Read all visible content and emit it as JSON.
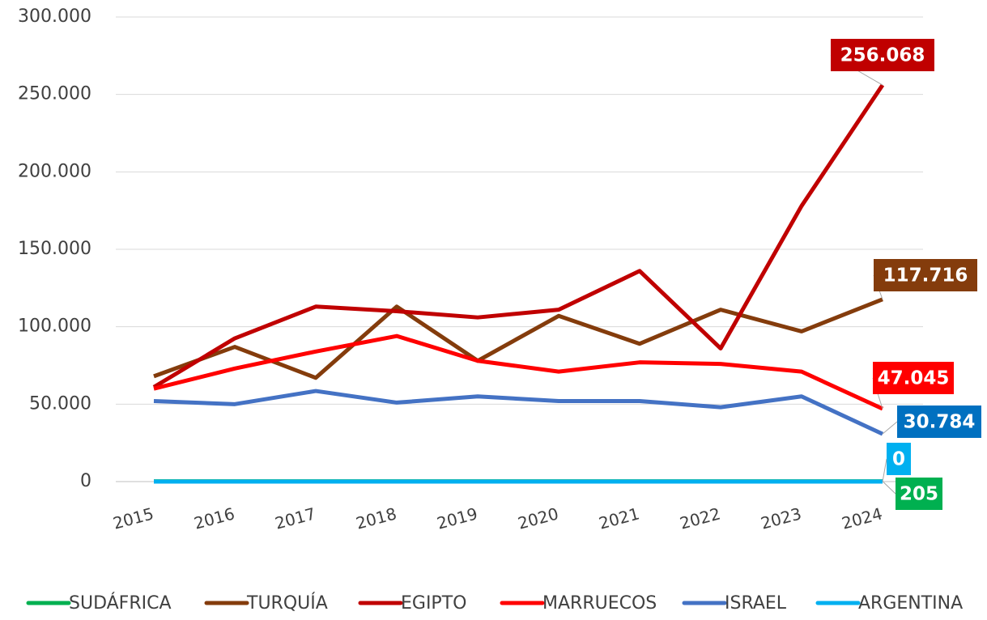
{
  "chart_data": {
    "type": "line",
    "categories": [
      "2015",
      "2016",
      "2017",
      "2018",
      "2019",
      "2020",
      "2021",
      "2022",
      "2023",
      "2024"
    ],
    "ylim": [
      0,
      300000
    ],
    "yticks": [
      0,
      {
        "value": 50000,
        "label": "50.000"
      },
      {
        "value": 100000,
        "label": "100.000"
      },
      {
        "value": 150000,
        "label": "150.000"
      },
      {
        "value": 200000,
        "label": "200.000"
      },
      {
        "value": 250000,
        "label": "250.000"
      },
      {
        "value": 300000,
        "label": "300.000"
      }
    ],
    "grid": true,
    "legend": "bottom",
    "series": [
      {
        "name": "SUDÁFRICA",
        "color": "#00B050",
        "values": [
          200,
          200,
          200,
          200,
          200,
          200,
          200,
          200,
          200,
          205
        ]
      },
      {
        "name": "TURQUÍA",
        "color": "#843C0C",
        "values": [
          68000,
          87000,
          67000,
          113000,
          78000,
          107000,
          89000,
          111000,
          97000,
          117716
        ],
        "value_labels": [
          null,
          null,
          null,
          null,
          null,
          null,
          null,
          null,
          null,
          "117.716"
        ]
      },
      {
        "name": "EGIPTO",
        "color": "#C00000",
        "values": [
          61000,
          92500,
          113000,
          110000,
          106000,
          111000,
          136000,
          86000,
          178000,
          256068
        ],
        "value_labels": [
          null,
          null,
          null,
          null,
          null,
          null,
          null,
          null,
          null,
          "256.068"
        ]
      },
      {
        "name": "MARRUECOS",
        "color": "#FF0000",
        "values": [
          60000,
          73000,
          84000,
          94000,
          78000,
          71000,
          77000,
          76000,
          71000,
          47045
        ],
        "value_labels": [
          null,
          null,
          null,
          null,
          null,
          null,
          null,
          null,
          null,
          "47.045"
        ]
      },
      {
        "name": "ISRAEL",
        "color": "#4472C4",
        "values": [
          52000,
          50000,
          58500,
          51000,
          55000,
          52000,
          52000,
          48000,
          55000,
          30784
        ],
        "value_labels": [
          null,
          null,
          null,
          null,
          null,
          null,
          null,
          null,
          null,
          "30.784"
        ]
      },
      {
        "name": "ARGENTINA",
        "color": "#00B0F0",
        "values": [
          0,
          0,
          0,
          0,
          0,
          0,
          0,
          0,
          0,
          0
        ]
      }
    ]
  }
}
